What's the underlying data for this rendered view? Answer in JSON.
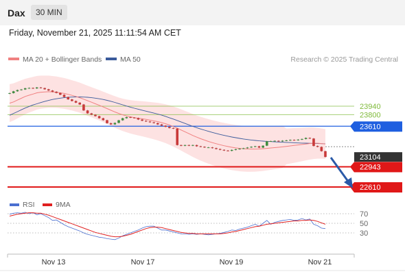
{
  "header": {
    "symbol": "Dax",
    "interval": "30 MIN",
    "datetime": "Friday, November 21, 2025 11:11:54 AM CET"
  },
  "legend": {
    "ma20_label": "MA 20 + Bollinger Bands",
    "ma50_label": "MA 50",
    "credit": "Research © 2025 Trading Central",
    "ma20_color": "#f08080",
    "ma50_color": "#3a5a9b"
  },
  "rsi_legend": {
    "rsi_label": "RSI",
    "ma9_label": "9MA",
    "rsi_color": "#4a6fd0",
    "ma9_color": "#e02020"
  },
  "chart_data": [
    {
      "type": "candlestick",
      "title": "",
      "x_labels": [
        "Nov 13",
        "Nov 17",
        "Nov 19",
        "Nov 21"
      ],
      "ylim": [
        22530,
        24230
      ],
      "levels": [
        {
          "value": 23940,
          "label": "23940",
          "kind": "resistance",
          "color": "#7fba3a"
        },
        {
          "value": 23800,
          "label": "23800",
          "kind": "resistance",
          "color": "#7fba3a"
        },
        {
          "value": 23610,
          "label": "23610",
          "kind": "pivot",
          "color": "#1f5fe0"
        },
        {
          "value": 23104,
          "label": "23104",
          "kind": "last-price",
          "color": "#333333"
        },
        {
          "value": 22943,
          "label": "22943",
          "kind": "support",
          "color": "#e01818"
        },
        {
          "value": 22610,
          "label": "22610",
          "kind": "support",
          "color": "#e01818"
        }
      ],
      "close_series": [
        24155,
        24185,
        24205,
        24215,
        24235,
        24240,
        24232,
        24248,
        24238,
        24218,
        24198,
        24178,
        24158,
        24128,
        24090,
        24052,
        24025,
        23998,
        23968,
        23870,
        23822,
        23800,
        23776,
        23742,
        23710,
        23660,
        23640,
        23665,
        23708,
        23742,
        23760,
        23752,
        23745,
        23720,
        23700,
        23688,
        23675,
        23662,
        23640,
        23620,
        23600,
        23580,
        23572,
        23300,
        23288,
        23300,
        23290,
        23300,
        23280,
        23272,
        23260,
        23262,
        23250,
        23235,
        23222,
        23210,
        23205,
        23220,
        23232,
        23240,
        23248,
        23260,
        23272,
        23280,
        23258,
        23290,
        23362,
        23365,
        23370,
        23360,
        23372,
        23378,
        23385,
        23380,
        23390,
        23400,
        23418,
        23408,
        23285,
        23270,
        23200,
        23104
      ],
      "ma20_series": [
        23990,
        24010,
        24040,
        24070,
        24100,
        24120,
        24140,
        24160,
        24170,
        24175,
        24178,
        24175,
        24170,
        24160,
        24150,
        24135,
        24118,
        24100,
        24080,
        24055,
        24030,
        24005,
        23980,
        23955,
        23928,
        23900,
        23872,
        23845,
        23820,
        23798,
        23780,
        23765,
        23752,
        23742,
        23733,
        23722,
        23710,
        23698,
        23686,
        23670,
        23652,
        23630,
        23605,
        23578,
        23548,
        23518,
        23488,
        23458,
        23430,
        23405,
        23382,
        23360,
        23340,
        23322,
        23305,
        23290,
        23276,
        23264,
        23254,
        23246,
        23240,
        23236,
        23234,
        23234,
        23236,
        23240,
        23246,
        23252,
        23258,
        23264,
        23270,
        23278,
        23286,
        23294,
        23302,
        23310,
        23318,
        23326,
        23330,
        23330,
        23325,
        23318
      ],
      "ma50_series": [
        23790,
        23820,
        23850,
        23880,
        23910,
        23935,
        23960,
        23980,
        24000,
        24018,
        24035,
        24050,
        24062,
        24072,
        24080,
        24086,
        24090,
        24092,
        24092,
        24090,
        24086,
        24080,
        24072,
        24062,
        24050,
        24036,
        24020,
        24002,
        23982,
        23962,
        23942,
        23924,
        23906,
        23890,
        23874,
        23858,
        23842,
        23826,
        23810,
        23792,
        23772,
        23750,
        23728,
        23704,
        23680,
        23656,
        23632,
        23608,
        23586,
        23565,
        23545,
        23526,
        23508,
        23491,
        23475,
        23460,
        23446,
        23433,
        23421,
        23410,
        23400,
        23391,
        23383,
        23376,
        23370,
        23365,
        23361,
        23357,
        23353,
        23350,
        23347,
        23344,
        23341,
        23338,
        23335,
        23333,
        23331,
        23329,
        23327,
        23325,
        23323,
        23321
      ]
    },
    {
      "type": "line",
      "title": "",
      "ylim": [
        0,
        100
      ],
      "yticks": [
        70,
        50,
        30
      ],
      "series": [
        {
          "name": "RSI",
          "values": [
            69,
            71,
            72,
            71,
            73,
            70,
            72,
            68,
            70,
            66,
            62,
            56,
            57,
            52,
            47,
            43,
            40,
            37,
            34,
            30,
            27,
            25,
            23,
            21,
            20,
            18,
            17,
            16,
            19,
            24,
            27,
            30,
            33,
            36,
            40,
            43,
            44,
            44,
            40,
            36,
            36,
            34,
            32,
            30,
            28,
            28,
            27,
            28,
            27,
            28,
            27,
            26,
            27,
            28,
            29,
            31,
            33,
            36,
            35,
            38,
            40,
            42,
            45,
            48,
            44,
            50,
            56,
            48,
            52,
            54,
            56,
            57,
            58,
            56,
            57,
            60,
            57,
            59,
            48,
            45,
            40,
            39
          ]
        },
        {
          "name": "9MA",
          "values": [
            65,
            67,
            69,
            70,
            71,
            72,
            72,
            71,
            71,
            69,
            67,
            64,
            61,
            58,
            55,
            52,
            49,
            46,
            43,
            40,
            37,
            34,
            31,
            29,
            27,
            25,
            23,
            22,
            22,
            23,
            25,
            27,
            30,
            33,
            36,
            39,
            41,
            42,
            42,
            41,
            39,
            37,
            35,
            33,
            31,
            30,
            29,
            29,
            28,
            28,
            28,
            28,
            28,
            28,
            28,
            29,
            30,
            32,
            33,
            35,
            37,
            39,
            41,
            43,
            44,
            46,
            48,
            49,
            50,
            51,
            52,
            53,
            54,
            55,
            55,
            56,
            56,
            57,
            56,
            54,
            51,
            48
          ]
        }
      ]
    }
  ]
}
